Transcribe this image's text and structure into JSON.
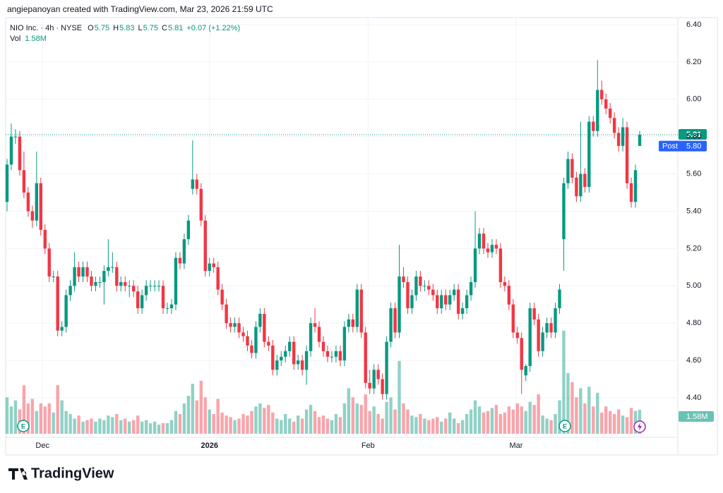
{
  "header": "angiepanoyan created with TradingView.com, Mar 23, 2026 21:59 UTC",
  "logo": "TradingView",
  "chart_data": {
    "type": "candlestick",
    "symbol": "NIO Inc. · 4h · NYSE",
    "legend": {
      "o_label": "O",
      "o": 5.75,
      "h_label": "H",
      "h": 5.83,
      "l_label": "L",
      "l": 5.75,
      "c_label": "C",
      "c": 5.81,
      "change": "+0.07 (+1.22%)",
      "vol_label": "Vol",
      "vol": 1.58,
      "vol_text": "1.58M"
    },
    "up_color": "#089981",
    "down_color": "#f23645",
    "price_line_color": "#2962ff",
    "ylim": [
      4.2,
      6.5
    ],
    "yticks": [
      {
        "value": 4.4,
        "label": "4.40"
      },
      {
        "value": 4.6,
        "label": "4.60"
      },
      {
        "value": 4.8,
        "label": "4.80"
      },
      {
        "value": 5.0,
        "label": "5.00"
      },
      {
        "value": 5.2,
        "label": "5.20"
      },
      {
        "value": 5.4,
        "label": "5.40"
      },
      {
        "value": 5.6,
        "label": "5.60"
      },
      {
        "value": 5.8,
        "label": "5.80"
      },
      {
        "value": 6.0,
        "label": "6.00"
      },
      {
        "value": 6.2,
        "label": "6.20"
      },
      {
        "value": 6.4,
        "label": "6.40"
      }
    ],
    "xticks": [
      {
        "value": 8.4,
        "label": "Dec"
      },
      {
        "value": 48,
        "label": "2026"
      },
      {
        "value": 85.6,
        "label": "Feb"
      },
      {
        "value": 120.7,
        "label": "Mar"
      }
    ],
    "grid": true,
    "last_price": {
      "value": 5.81,
      "label": "5.81"
    },
    "post_price": {
      "name": "Post",
      "value": 5.8,
      "label": "5.80"
    },
    "volume_tag": {
      "value": 1.58,
      "label": "1.58M"
    },
    "ohlc": [
      [
        5.45,
        5.68,
        5.4,
        5.65
      ],
      [
        5.65,
        5.87,
        5.62,
        5.8
      ],
      [
        5.8,
        5.84,
        5.76,
        5.8
      ],
      [
        5.8,
        5.83,
        5.59,
        5.62
      ],
      [
        5.62,
        5.72,
        5.47,
        5.5
      ],
      [
        5.5,
        5.53,
        5.37,
        5.4
      ],
      [
        5.4,
        5.43,
        5.31,
        5.35
      ],
      [
        5.35,
        5.72,
        5.32,
        5.55
      ],
      [
        5.55,
        5.58,
        5.27,
        5.3
      ],
      [
        5.3,
        5.33,
        5.17,
        5.2
      ],
      [
        5.2,
        5.23,
        5.02,
        5.05
      ],
      [
        5.05,
        5.08,
        5.02,
        5.05
      ],
      [
        5.05,
        5.08,
        4.73,
        4.76
      ],
      [
        4.76,
        4.81,
        4.73,
        4.78
      ],
      [
        4.78,
        4.98,
        4.75,
        4.95
      ],
      [
        4.95,
        5.03,
        4.92,
        5.0
      ],
      [
        5.0,
        5.18,
        4.97,
        5.1
      ],
      [
        5.1,
        5.13,
        5.02,
        5.05
      ],
      [
        5.05,
        5.13,
        5.02,
        5.1
      ],
      [
        5.1,
        5.13,
        5.02,
        5.05
      ],
      [
        5.05,
        5.08,
        4.97,
        5.0
      ],
      [
        5.0,
        5.05,
        4.97,
        5.02
      ],
      [
        5.02,
        5.05,
        4.99,
        5.02
      ],
      [
        5.02,
        5.11,
        4.9,
        5.08
      ],
      [
        5.08,
        5.25,
        5.05,
        5.1
      ],
      [
        5.1,
        5.18,
        5.07,
        5.1
      ],
      [
        5.1,
        5.13,
        4.97,
        5.0
      ],
      [
        5.0,
        5.05,
        4.97,
        5.02
      ],
      [
        5.02,
        5.05,
        4.97,
        5.0
      ],
      [
        5.0,
        5.03,
        4.94,
        5.0
      ],
      [
        5.0,
        5.03,
        4.94,
        4.97
      ],
      [
        4.97,
        5.0,
        4.85,
        4.88
      ],
      [
        4.88,
        4.98,
        4.85,
        4.95
      ],
      [
        4.95,
        5.03,
        4.92,
        5.0
      ],
      [
        5.0,
        5.03,
        4.97,
        5.0
      ],
      [
        5.0,
        5.03,
        4.97,
        5.0
      ],
      [
        5.0,
        5.03,
        4.97,
        5.0
      ],
      [
        5.0,
        5.03,
        4.85,
        4.88
      ],
      [
        4.88,
        4.91,
        4.85,
        4.88
      ],
      [
        4.88,
        4.93,
        4.85,
        4.9
      ],
      [
        4.9,
        5.18,
        4.87,
        5.15
      ],
      [
        5.15,
        5.18,
        5.09,
        5.12
      ],
      [
        5.12,
        5.28,
        5.09,
        5.25
      ],
      [
        5.25,
        5.38,
        5.22,
        5.35
      ],
      [
        5.52,
        5.78,
        5.49,
        5.57
      ],
      [
        5.57,
        5.6,
        5.49,
        5.52
      ],
      [
        5.52,
        5.55,
        5.32,
        5.35
      ],
      [
        5.35,
        5.38,
        5.05,
        5.08
      ],
      [
        5.08,
        5.15,
        5.05,
        5.12
      ],
      [
        5.12,
        5.15,
        5.07,
        5.1
      ],
      [
        5.1,
        5.13,
        4.95,
        4.98
      ],
      [
        4.98,
        5.01,
        4.87,
        4.9
      ],
      [
        4.9,
        4.93,
        4.77,
        4.8
      ],
      [
        4.8,
        4.83,
        4.75,
        4.78
      ],
      [
        4.78,
        4.83,
        4.75,
        4.8
      ],
      [
        4.8,
        4.83,
        4.72,
        4.75
      ],
      [
        4.75,
        4.78,
        4.7,
        4.73
      ],
      [
        4.73,
        4.76,
        4.65,
        4.68
      ],
      [
        4.68,
        4.71,
        4.61,
        4.64
      ],
      [
        4.64,
        4.81,
        4.61,
        4.78
      ],
      [
        4.78,
        4.88,
        4.75,
        4.85
      ],
      [
        4.85,
        4.88,
        4.67,
        4.7
      ],
      [
        4.7,
        4.73,
        4.65,
        4.68
      ],
      [
        4.68,
        4.71,
        4.52,
        4.55
      ],
      [
        4.55,
        4.63,
        4.52,
        4.6
      ],
      [
        4.6,
        4.65,
        4.57,
        4.62
      ],
      [
        4.62,
        4.68,
        4.59,
        4.65
      ],
      [
        4.65,
        4.73,
        4.62,
        4.7
      ],
      [
        4.7,
        4.73,
        4.55,
        4.58
      ],
      [
        4.58,
        4.63,
        4.55,
        4.6
      ],
      [
        4.6,
        4.63,
        4.52,
        4.55
      ],
      [
        4.55,
        4.68,
        4.47,
        4.65
      ],
      [
        4.65,
        4.83,
        4.62,
        4.8
      ],
      [
        4.8,
        4.88,
        4.75,
        4.78
      ],
      [
        4.78,
        4.81,
        4.67,
        4.7
      ],
      [
        4.7,
        4.73,
        4.62,
        4.65
      ],
      [
        4.65,
        4.68,
        4.59,
        4.62
      ],
      [
        4.62,
        4.65,
        4.59,
        4.62
      ],
      [
        4.62,
        4.68,
        4.59,
        4.65
      ],
      [
        4.65,
        4.68,
        4.57,
        4.6
      ],
      [
        4.6,
        4.81,
        4.57,
        4.78
      ],
      [
        4.78,
        4.85,
        4.75,
        4.82
      ],
      [
        4.82,
        4.85,
        4.75,
        4.78
      ],
      [
        4.78,
        5.01,
        4.75,
        4.98
      ],
      [
        4.98,
        5.01,
        4.72,
        4.75
      ],
      [
        4.75,
        4.78,
        4.45,
        4.48
      ],
      [
        4.48,
        4.55,
        4.42,
        4.45
      ],
      [
        4.45,
        4.58,
        4.42,
        4.55
      ],
      [
        4.55,
        4.58,
        4.47,
        4.5
      ],
      [
        4.5,
        4.53,
        4.39,
        4.42
      ],
      [
        4.42,
        4.73,
        4.39,
        4.7
      ],
      [
        4.7,
        4.91,
        4.67,
        4.88
      ],
      [
        4.88,
        4.91,
        4.72,
        4.75
      ],
      [
        4.75,
        5.22,
        4.72,
        5.05
      ],
      [
        5.05,
        5.1,
        4.99,
        5.02
      ],
      [
        5.02,
        5.05,
        4.85,
        4.88
      ],
      [
        4.88,
        4.98,
        4.85,
        4.95
      ],
      [
        4.95,
        5.08,
        4.92,
        5.05
      ],
      [
        5.05,
        5.08,
        4.97,
        5.0
      ],
      [
        5.0,
        5.03,
        4.97,
        5.0
      ],
      [
        5.0,
        5.03,
        4.95,
        4.98
      ],
      [
        4.98,
        5.01,
        4.92,
        4.95
      ],
      [
        4.95,
        4.98,
        4.85,
        4.88
      ],
      [
        4.88,
        4.98,
        4.85,
        4.95
      ],
      [
        4.95,
        4.98,
        4.87,
        4.9
      ],
      [
        4.9,
        4.98,
        4.87,
        4.95
      ],
      [
        4.95,
        5.01,
        4.92,
        4.98
      ],
      [
        4.98,
        5.01,
        4.82,
        4.85
      ],
      [
        4.85,
        4.91,
        4.82,
        4.88
      ],
      [
        4.88,
        4.98,
        4.85,
        4.95
      ],
      [
        4.95,
        5.05,
        4.92,
        5.02
      ],
      [
        5.02,
        5.4,
        4.99,
        5.2
      ],
      [
        5.2,
        5.31,
        5.17,
        5.28
      ],
      [
        5.28,
        5.31,
        5.17,
        5.2
      ],
      [
        5.2,
        5.23,
        5.15,
        5.18
      ],
      [
        5.18,
        5.25,
        5.15,
        5.22
      ],
      [
        5.22,
        5.25,
        5.17,
        5.2
      ],
      [
        5.2,
        5.23,
        4.99,
        5.02
      ],
      [
        5.02,
        5.05,
        4.97,
        5.0
      ],
      [
        5.0,
        5.03,
        4.87,
        4.9
      ],
      [
        4.9,
        4.93,
        4.72,
        4.75
      ],
      [
        4.75,
        4.78,
        4.69,
        4.72
      ],
      [
        4.72,
        4.75,
        4.42,
        4.55
      ],
      [
        4.52,
        4.58,
        4.49,
        4.57
      ],
      [
        4.57,
        4.91,
        4.54,
        4.88
      ],
      [
        4.88,
        4.91,
        4.79,
        4.82
      ],
      [
        4.82,
        4.85,
        4.62,
        4.65
      ],
      [
        4.65,
        4.78,
        4.62,
        4.75
      ],
      [
        4.75,
        4.83,
        4.72,
        4.8
      ],
      [
        4.8,
        4.83,
        4.72,
        4.75
      ],
      [
        4.75,
        4.91,
        4.72,
        4.88
      ],
      [
        4.88,
        5.01,
        4.85,
        4.98
      ],
      [
        5.25,
        5.58,
        5.08,
        5.55
      ],
      [
        5.55,
        5.72,
        5.52,
        5.68
      ],
      [
        5.68,
        5.71,
        5.55,
        5.58
      ],
      [
        5.58,
        5.61,
        5.45,
        5.48
      ],
      [
        5.48,
        5.88,
        5.45,
        5.6
      ],
      [
        5.6,
        5.63,
        5.5,
        5.53
      ],
      [
        5.53,
        5.91,
        5.5,
        5.88
      ],
      [
        5.88,
        5.91,
        5.8,
        5.83
      ],
      [
        5.83,
        6.21,
        5.8,
        6.05
      ],
      [
        6.05,
        6.1,
        5.97,
        6.0
      ],
      [
        6.0,
        6.03,
        5.92,
        5.95
      ],
      [
        5.95,
        5.98,
        5.87,
        5.9
      ],
      [
        5.9,
        5.93,
        5.79,
        5.82
      ],
      [
        5.82,
        5.85,
        5.72,
        5.75
      ],
      [
        5.75,
        5.9,
        5.72,
        5.85
      ],
      [
        5.85,
        5.88,
        5.52,
        5.55
      ],
      [
        5.55,
        5.58,
        5.42,
        5.45
      ],
      [
        5.45,
        5.65,
        5.42,
        5.62
      ],
      [
        5.75,
        5.83,
        5.75,
        5.81
      ]
    ],
    "volume": [
      2.4,
      1.8,
      2.2,
      1.6,
      3.2,
      2.0,
      2.3,
      1.5,
      2.0,
      1.8,
      2.0,
      1.4,
      3.2,
      2.2,
      1.5,
      1.3,
      1.0,
      1.2,
      0.8,
      0.9,
      1.0,
      0.8,
      1.0,
      0.9,
      1.2,
      1.1,
      1.3,
      0.9,
      1.0,
      0.8,
      0.9,
      1.2,
      0.8,
      0.9,
      0.7,
      0.8,
      0.6,
      0.7,
      0.7,
      0.9,
      1.5,
      1.3,
      2.0,
      2.5,
      3.3,
      2.2,
      3.5,
      2.4,
      1.6,
      1.3,
      2.3,
      1.4,
      1.2,
      1.1,
      0.9,
      1.0,
      1.3,
      1.2,
      1.5,
      1.8,
      2.0,
      1.7,
      1.9,
      1.4,
      1.0,
      0.9,
      1.3,
      1.0,
      0.8,
      1.2,
      1.0,
      1.6,
      1.9,
      1.5,
      1.1,
      1.2,
      1.0,
      0.9,
      1.3,
      1.1,
      2.0,
      3.0,
      2.4,
      2.0,
      1.9,
      2.6,
      1.5,
      1.8,
      1.3,
      1.0,
      2.1,
      2.4,
      1.6,
      4.8,
      2.0,
      1.6,
      1.2,
      1.1,
      1.3,
      1.0,
      0.9,
      1.0,
      1.1,
      0.8,
      1.0,
      1.4,
      1.0,
      0.7,
      0.9,
      1.3,
      1.6,
      2.2,
      1.8,
      1.4,
      1.5,
      1.7,
      1.9,
      1.3,
      1.4,
      1.8,
      1.6,
      2.0,
      1.8,
      1.5,
      2.1,
      1.9,
      2.6,
      1.2,
      1.0,
      0.9,
      1.3,
      2.2,
      6.8,
      4.0,
      3.4,
      2.4,
      3.0,
      2.0,
      3.1,
      1.8,
      2.7,
      1.4,
      1.8,
      1.5,
      1.3,
      1.6,
      1.2,
      1.1,
      1.7,
      1.5,
      1.58
    ]
  }
}
